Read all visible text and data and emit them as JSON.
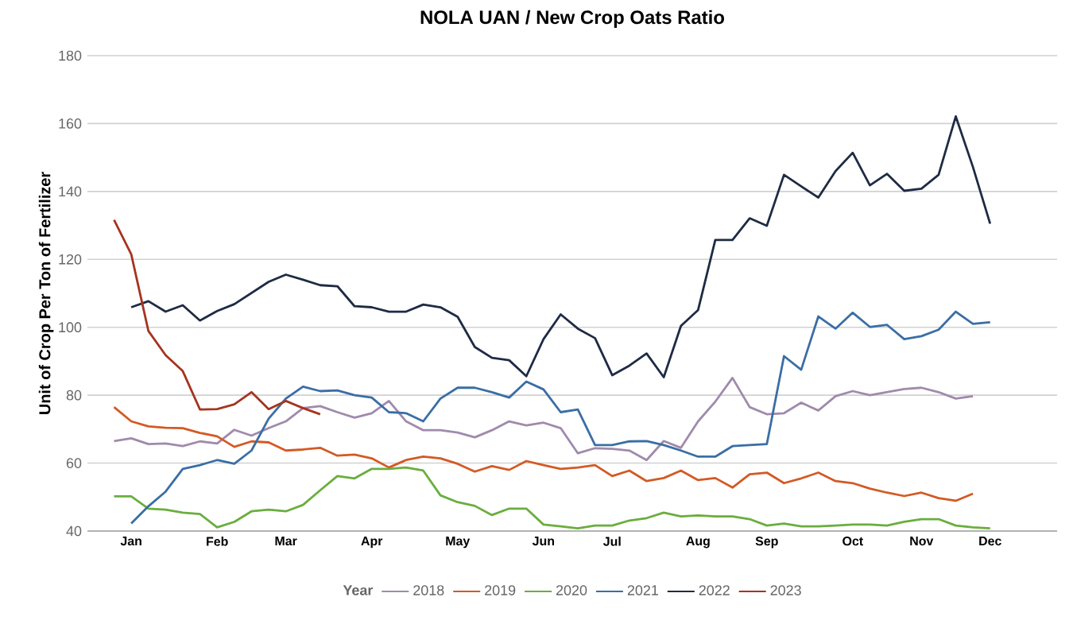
{
  "chart_data": {
    "type": "line",
    "title": "NOLA UAN / New Crop Oats Ratio",
    "ylabel": "Unit of Crop Per Ton of Fertilizer",
    "legend_title": "Year",
    "categories": [
      null,
      "Jan",
      null,
      null,
      null,
      null,
      "Feb",
      null,
      null,
      null,
      "Mar",
      null,
      null,
      null,
      null,
      "Apr",
      null,
      null,
      null,
      null,
      "May",
      null,
      null,
      null,
      null,
      "Jun",
      null,
      null,
      null,
      "Jul",
      null,
      null,
      null,
      null,
      "Aug",
      null,
      null,
      null,
      "Sep",
      null,
      null,
      null,
      null,
      "Oct",
      null,
      null,
      null,
      "Nov",
      null,
      null,
      null,
      "Dec"
    ],
    "ylim": [
      40,
      180
    ],
    "yticks": [
      40,
      60,
      80,
      100,
      120,
      140,
      160,
      180
    ],
    "grid": "y",
    "legend": "bottom",
    "marker": "none",
    "line_style": "solid",
    "series": [
      {
        "name": "2018",
        "color": "#a08aac",
        "values": [
          66.5,
          67.3,
          65.6,
          65.8,
          65.0,
          66.4,
          65.8,
          69.8,
          68.1,
          70.3,
          72.3,
          76.2,
          76.8,
          75.0,
          73.4,
          74.7,
          78.3,
          72.3,
          69.7,
          69.7,
          69.0,
          67.6,
          69.7,
          72.3,
          71.1,
          71.9,
          70.3,
          62.9,
          64.4,
          64.2,
          63.7,
          60.9,
          66.5,
          64.5,
          72.3,
          78.1,
          85.1,
          76.5,
          74.4,
          74.7,
          77.8,
          75.5,
          79.7,
          81.2,
          80.0,
          80.9,
          81.8,
          82.2,
          80.9,
          79.0,
          79.7,
          null
        ]
      },
      {
        "name": "2019",
        "color": "#d35a25",
        "values": [
          76.5,
          72.3,
          70.8,
          70.4,
          70.3,
          68.9,
          67.9,
          64.8,
          66.4,
          66.1,
          63.7,
          64.0,
          64.5,
          62.2,
          62.5,
          61.4,
          58.7,
          60.9,
          61.9,
          61.4,
          59.8,
          57.5,
          59.1,
          58.0,
          60.6,
          59.4,
          58.3,
          58.7,
          59.4,
          56.2,
          57.8,
          54.7,
          55.6,
          57.8,
          55.0,
          55.6,
          52.8,
          56.7,
          57.2,
          54.1,
          55.5,
          57.2,
          54.7,
          54.1,
          52.5,
          51.3,
          50.3,
          51.3,
          49.7,
          48.9,
          51.0,
          null
        ]
      },
      {
        "name": "2020",
        "color": "#6aae3e",
        "values": [
          50.2,
          50.2,
          46.6,
          46.3,
          45.4,
          45.0,
          41.1,
          42.7,
          45.8,
          46.3,
          45.8,
          47.7,
          52.0,
          56.2,
          55.5,
          58.3,
          58.3,
          58.7,
          57.8,
          50.5,
          48.5,
          47.4,
          44.7,
          46.6,
          46.6,
          41.9,
          41.4,
          40.8,
          41.6,
          41.6,
          43.1,
          43.8,
          45.4,
          44.3,
          44.6,
          44.3,
          44.3,
          43.5,
          41.6,
          42.2,
          41.4,
          41.4,
          41.6,
          41.9,
          41.9,
          41.6,
          42.7,
          43.5,
          43.5,
          41.6,
          41.1,
          40.8
        ]
      },
      {
        "name": "2021",
        "color": "#3a6ea5",
        "values": [
          null,
          42.2,
          47.3,
          51.6,
          58.3,
          59.4,
          60.9,
          59.8,
          63.7,
          73.1,
          79.0,
          82.5,
          81.2,
          81.4,
          80.0,
          79.3,
          75.0,
          74.7,
          72.3,
          79.0,
          82.2,
          82.2,
          80.9,
          79.3,
          84.0,
          81.7,
          75.0,
          75.8,
          65.3,
          65.3,
          66.4,
          66.5,
          65.3,
          63.7,
          61.9,
          61.9,
          65.0,
          65.3,
          65.6,
          91.5,
          87.5,
          103.2,
          99.6,
          104.3,
          100.1,
          100.7,
          96.5,
          97.4,
          99.3,
          104.6,
          101.0,
          101.5
        ]
      },
      {
        "name": "2022",
        "color": "#1e2b44",
        "values": [
          null,
          105.9,
          107.7,
          104.6,
          106.5,
          102.0,
          104.8,
          106.8,
          110.1,
          113.4,
          115.5,
          114.0,
          112.4,
          112.1,
          106.2,
          105.9,
          104.6,
          104.6,
          106.7,
          105.9,
          103.1,
          94.2,
          91.0,
          90.3,
          85.6,
          96.5,
          103.8,
          99.6,
          96.8,
          85.9,
          88.7,
          92.3,
          85.3,
          100.4,
          105.1,
          125.7,
          125.7,
          132.1,
          129.9,
          144.9,
          141.5,
          138.2,
          146.0,
          151.4,
          141.8,
          145.2,
          140.2,
          140.8,
          144.9,
          162.1,
          147.2,
          130.5
        ]
      },
      {
        "name": "2023",
        "color": "#a53420",
        "values": [
          131.6,
          121.5,
          98.9,
          91.8,
          87.1,
          75.8,
          75.9,
          77.3,
          80.9,
          75.9,
          78.3,
          76.2,
          74.4,
          null,
          null,
          null,
          null,
          null,
          null,
          null,
          null,
          null,
          null,
          null,
          null,
          null,
          null,
          null,
          null,
          null,
          null,
          null,
          null,
          null,
          null,
          null,
          null,
          null,
          null,
          null,
          null,
          null,
          null,
          null,
          null,
          null,
          null,
          null,
          null,
          null,
          null,
          null
        ]
      }
    ]
  }
}
